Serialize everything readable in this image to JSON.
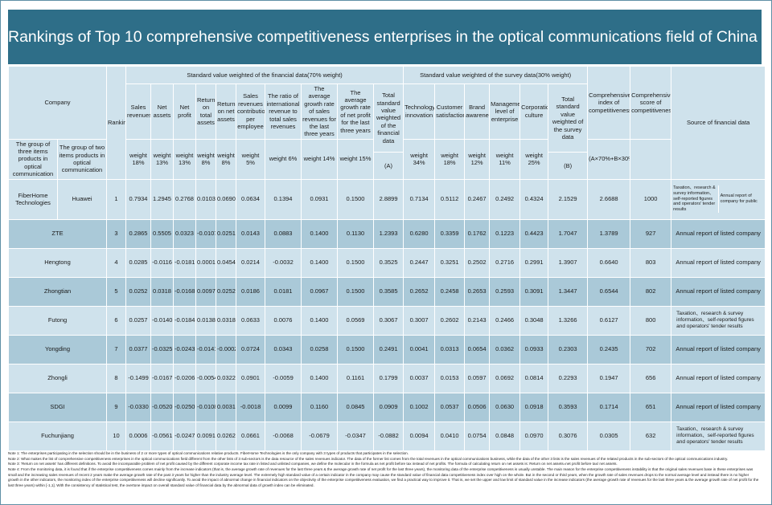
{
  "title": "Rankings of Top 10 comprehensive competitiveness enterprises in the optical communications field of China during 2011-2012",
  "headers": {
    "company": "Company",
    "group3": "The group of three items products in optical communication",
    "group2": "The group of two items products in optical communication",
    "ranking": "Ranking",
    "financial_group": "Standard value weighted of the financial data(70% weight)",
    "survey_group": "Standard value weighted of the survey data(30% weight)",
    "sales_revenues": "Sales revenues",
    "net_assets": "Net assets",
    "net_profit": "Net profit",
    "return_total_assets": "Return on total assets",
    "return_net_assets": "Return on net assets",
    "sales_per_employee": "Sales revenues contribution per employee",
    "intl_ratio": "The ratio of international revenue to total sales revenues",
    "growth_sales": "The average growth rate of sales revenues for the last three years",
    "growth_profit": "The average growth rate of net profit for the last three years",
    "total_fin": "Total standard value weighted of the financial data",
    "tech": "Technology innovation",
    "satisfaction": "Customer satisfaction",
    "brand": "Brand awareness",
    "mgmt": "Management level of enterprise",
    "culture": "Corporation culture",
    "total_survey": "Total standard value weighted of the survey data",
    "comp_index": "Comprehensive index of competitiveness",
    "comp_score": "Comprehensive score of competitiveness",
    "source": "Source of financial data",
    "w_sales": "weight 18%",
    "w_netassets": "weight 13%",
    "w_netprofit": "weight 13%",
    "w_rta": "weight 8%",
    "w_rna": "weight 8%",
    "w_spe": "weight 5%",
    "w_intl": "weight 6%",
    "w_gs": "weight 14%",
    "w_gp": "weight 15%",
    "w_fin_label": "(A)",
    "w_tech": "weight 34%",
    "w_sat": "weight 18%",
    "w_brand": "weight 12%",
    "w_mgmt": "weight 11%",
    "w_culture": "weight 25%",
    "w_survey_label": "(B)",
    "formula": "(A×70%+B×30%)"
  },
  "first_row": {
    "company3": "FiberHome Technologies",
    "company2": "Huawei",
    "rank": "1",
    "values": [
      "0.7934",
      "1.2945",
      "0.2768",
      "0.0103",
      "0.0690",
      "0.0634",
      "0.1394",
      "0.0931",
      "0.1500",
      "2.8899",
      "0.7134",
      "0.5112",
      "0.2467",
      "0.2492",
      "0.4324",
      "2.1529",
      "2.6688",
      "1000"
    ],
    "source1": "Taxation、research & survey information、self-reported figures and operators' tender results",
    "source2": "Annual report of company for public"
  },
  "rows": [
    {
      "company": "ZTE",
      "rank": "3",
      "values": [
        "0.2865",
        "0.5505",
        "0.0323",
        "-0.0107",
        "0.0251",
        "0.0143",
        "0.0883",
        "0.1400",
        "0.1130",
        "1.2393",
        "0.6280",
        "0.3359",
        "0.1762",
        "0.1223",
        "0.4423",
        "1.7047",
        "1.3789",
        "927"
      ],
      "source": "Annual report of listed company"
    },
    {
      "company": "Hengtong",
      "rank": "4",
      "values": [
        "0.0285",
        "-0.0116",
        "-0.0181",
        "0.0001",
        "0.0454",
        "0.0214",
        "-0.0032",
        "0.1400",
        "0.1500",
        "0.3525",
        "0.2447",
        "0.3251",
        "0.2502",
        "0.2716",
        "0.2991",
        "1.3907",
        "0.6640",
        "803"
      ],
      "source": "Annual report of listed company"
    },
    {
      "company": "Zhongtian",
      "rank": "5",
      "values": [
        "0.0252",
        "0.0318",
        "-0.0168",
        "0.0097",
        "0.0252",
        "0.0186",
        "0.0181",
        "0.0967",
        "0.1500",
        "0.3585",
        "0.2652",
        "0.2458",
        "0.2653",
        "0.2593",
        "0.3091",
        "1.3447",
        "0.6544",
        "802"
      ],
      "source": "Annual report of listed company"
    },
    {
      "company": "Futong",
      "rank": "6",
      "values": [
        "0.0257",
        "-0.0140",
        "-0.0184",
        "0.0138",
        "0.0318",
        "0.0633",
        "0.0076",
        "0.1400",
        "0.0569",
        "0.3067",
        "0.3007",
        "0.2602",
        "0.2143",
        "0.2466",
        "0.3048",
        "1.3266",
        "0.6127",
        "800"
      ],
      "source": "Taxation、research & survey information、self-reported figures and operators' tender results"
    },
    {
      "company": "Yongding",
      "rank": "7",
      "values": [
        "0.0377",
        "-0.0325",
        "-0.0243",
        "-0.0141",
        "-0.0002",
        "0.0724",
        "0.0343",
        "0.0258",
        "0.1500",
        "0.2491",
        "0.0041",
        "0.0313",
        "0.0654",
        "0.0362",
        "0.0933",
        "0.2303",
        "0.2435",
        "702"
      ],
      "source": "Annual report of listed company"
    },
    {
      "company": "Zhongli",
      "rank": "8",
      "values": [
        "-0.1499",
        "-0.0167",
        "-0.0206",
        "-0.0054",
        "0.0322",
        "0.0901",
        "-0.0059",
        "0.1400",
        "0.1161",
        "0.1799",
        "0.0037",
        "0.0153",
        "0.0597",
        "0.0692",
        "0.0814",
        "0.2293",
        "0.1947",
        "656"
      ],
      "source": "Annual report of listed company"
    },
    {
      "company": "SDGI",
      "rank": "9",
      "values": [
        "-0.0330",
        "-0.0520",
        "-0.0250",
        "-0.0108",
        "0.0031",
        "-0.0018",
        "0.0099",
        "0.1160",
        "0.0845",
        "0.0909",
        "0.1002",
        "0.0537",
        "0.0506",
        "0.0630",
        "0.0918",
        "0.3593",
        "0.1714",
        "651"
      ],
      "source": "Annual report of listed company"
    },
    {
      "company": "Fuchunjiang",
      "rank": "10",
      "values": [
        "0.0006",
        "-0.0561",
        "-0.0247",
        "0.0091",
        "0.0262",
        "0.0661",
        "-0.0068",
        "-0.0679",
        "-0.0347",
        "-0.0882",
        "0.0094",
        "0.0410",
        "0.0754",
        "0.0848",
        "0.0970",
        "0.3076",
        "0.0305",
        "632"
      ],
      "source": "Taxation、research & survey information、self-reported figures and operators' tender results"
    }
  ],
  "notes": [
    "Note 1: The enterprises participating in the selection should be in the business of 2 or more types of optical communications relative products. FiberHome Technologies is the only company with 3 types of products that participates in the selection.",
    "Note 2: What makes the list of comprehensive competitiveness enterprises in the optical communications field different from the other lists of 3 sub-sectors is the data resource of the sales revenues indicator. The data of the former list comes from the total revenues in the optical communications business, while the data of the other 3 lists is the sales revenues of the related products in the sub-sectors of the optical communications industry.",
    "Note 3: 'Return on net assets' has different definitions. To avoid the incomparable problem of net profit caused by the different corporate income tax rate in listed and unlisted companies, we define the molecular in the formula as net profit before tax instead of net profits. The formula of calculating return on net assets is: Return on net assets=net profit before tax/ net assets.",
    "Note 4: From the monitoring data, it is found that if the enterprise competitiveness comes mainly from the increase indicators (that is, the average growth rate of revenues for the last three years & the average growth rate of net profit for the last three years), the monitoring data of the enterprise competitiveness is usually unstable. The main reason for the enterprise competitiveness instability is that the original sales revenues base in these enterprises was small and the increasing sales revenues of recent 2 years make the average growth rate of the past 3 years far higher than the industry average level. The extremely high standard value of a certain indicator in the company may cause the standard value of financial data competitiveness index over high on the whole. But in the second or third years, when the growth rate of sales revenues drops to the normal average level and instead there is no higher growth in the other indicators, the monitoring index of the enterprise competitiveness will decline significantly. To avoid the impact of abnormal change in financial indicators on the objectivity of the enterprise competitiveness evaluation, we find a practical way to improve it. That is, we set the upper and low limit of standard value in the increase indicators (the average growth rate of revenues for the last three years & the average growth rate of net profit for the last three years) within [-1,1]. With the consistency of statistical test, the overtone impact on overall standard value of financial data by the abnormal data of growth index can be eliminated."
  ]
}
